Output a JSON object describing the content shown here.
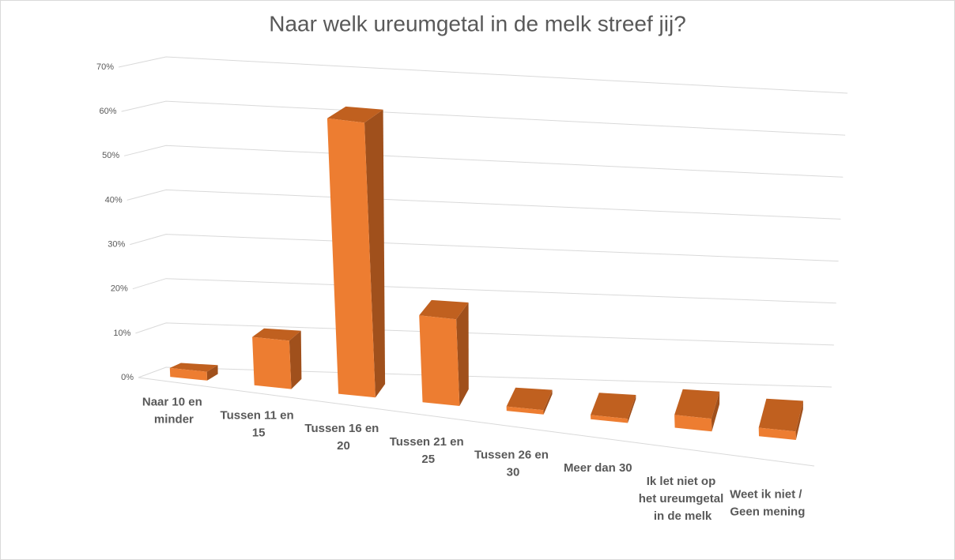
{
  "chart_data": {
    "type": "bar3d",
    "title": "Naar welk ureumgetal in de melk streef jij?",
    "categories": [
      "Naar 10 en minder",
      "Tussen 11 en 15",
      "Tussen 16 en 20",
      "Tussen 21 en 25",
      "Tussen 26 en 30",
      "Meer dan 30",
      "Ik let niet op het ureumgetal in de melk",
      "Weet ik niet / Geen mening"
    ],
    "values": [
      2,
      11,
      63,
      20,
      1,
      1,
      3,
      2
    ],
    "color": "#ed7d31",
    "ylim": [
      0,
      70
    ],
    "yticks": [
      {
        "value": 0,
        "label": "0%"
      },
      {
        "value": 10,
        "label": "10%"
      },
      {
        "value": 20,
        "label": "20%"
      },
      {
        "value": 30,
        "label": "30%"
      },
      {
        "value": 40,
        "label": "40%"
      },
      {
        "value": 50,
        "label": "50%"
      },
      {
        "value": 60,
        "label": "60%"
      },
      {
        "value": 70,
        "label": "70%"
      }
    ],
    "grid": true
  }
}
